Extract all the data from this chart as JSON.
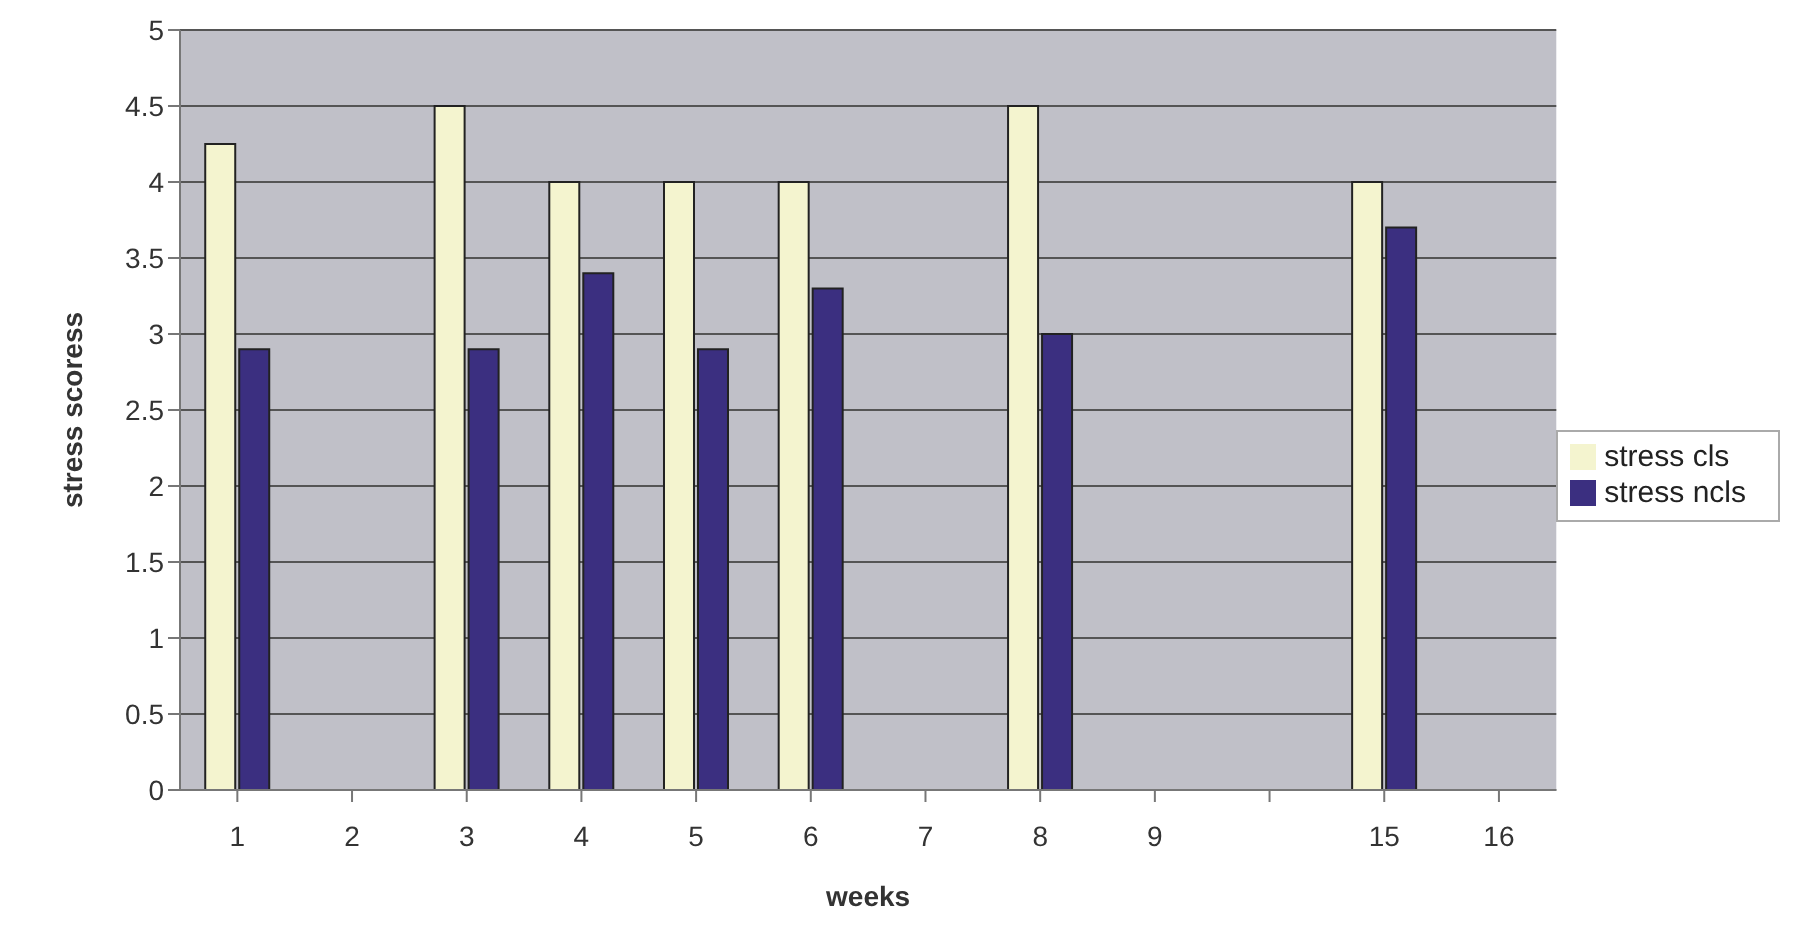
{
  "chart_data": {
    "type": "bar",
    "xlabel": "weeks",
    "ylabel": "stress scoress",
    "categories": [
      "1",
      "2",
      "3",
      "4",
      "5",
      "6",
      "7",
      "8",
      "9",
      null,
      "15",
      "16"
    ],
    "series": [
      {
        "name": "stress cls",
        "color": "#f4f4cf",
        "values": [
          4.25,
          null,
          4.5,
          4,
          4,
          4,
          null,
          4.5,
          null,
          null,
          4,
          null
        ]
      },
      {
        "name": "stress ncls",
        "color": "#3b2f80",
        "values": [
          2.9,
          null,
          2.9,
          3.4,
          2.9,
          3.3,
          null,
          3.0,
          null,
          null,
          3.7,
          null
        ]
      }
    ],
    "ylim": [
      0,
      5
    ],
    "yticks": [
      0,
      0.5,
      1,
      1.5,
      2,
      2.5,
      3,
      3.5,
      4,
      4.5,
      5
    ],
    "grid": "y",
    "legend": "right"
  }
}
